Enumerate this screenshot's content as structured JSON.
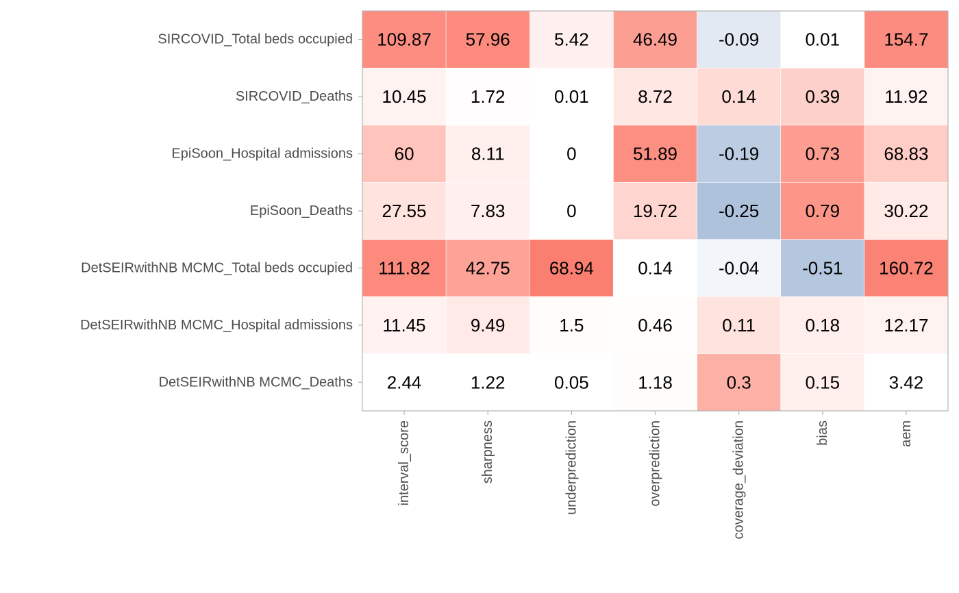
{
  "chart_data": {
    "type": "heatmap",
    "title": "",
    "xlabel": "",
    "ylabel": "",
    "legend": "none",
    "grid": false,
    "columns": [
      "interval_score",
      "sharpness",
      "underprediction",
      "overprediction",
      "coverage_deviation",
      "bias",
      "aem"
    ],
    "rows": [
      "SIRCOVID_Total beds occupied",
      "SIRCOVID_Deaths",
      "EpiSoon_Hospital admissions",
      "EpiSoon_Deaths",
      "DetSEIRwithNB MCMC_Total beds occupied",
      "DetSEIRwithNB MCMC_Hospital admissions",
      "DetSEIRwithNB MCMC_Deaths"
    ],
    "cells": [
      [
        {
          "label": "109.87",
          "color": "#fc8d80"
        },
        {
          "label": "57.96",
          "color": "#fc8a7d"
        },
        {
          "label": "5.42",
          "color": "#fff0ef"
        },
        {
          "label": "46.49",
          "color": "#fd9e93"
        },
        {
          "label": "-0.09",
          "color": "#e3e9f3"
        },
        {
          "label": "0.01",
          "color": "#ffffff"
        },
        {
          "label": "154.7",
          "color": "#fc8c7f"
        }
      ],
      [
        {
          "label": "10.45",
          "color": "#fff3f2"
        },
        {
          "label": "1.72",
          "color": "#fffdfd"
        },
        {
          "label": "0.01",
          "color": "#ffffff"
        },
        {
          "label": "8.72",
          "color": "#ffe7e4"
        },
        {
          "label": "0.14",
          "color": "#ffdbd6"
        },
        {
          "label": "0.39",
          "color": "#fed0ca"
        },
        {
          "label": "11.92",
          "color": "#fff3f2"
        }
      ],
      [
        {
          "label": "60",
          "color": "#ffc4bc"
        },
        {
          "label": "8.11",
          "color": "#fff0ee"
        },
        {
          "label": "0",
          "color": "#ffffff"
        },
        {
          "label": "51.89",
          "color": "#fc8f82"
        },
        {
          "label": "-0.19",
          "color": "#bccde3"
        },
        {
          "label": "0.73",
          "color": "#fd9d92"
        },
        {
          "label": "68.83",
          "color": "#ffcdc6"
        }
      ],
      [
        {
          "label": "27.55",
          "color": "#ffe3df"
        },
        {
          "label": "7.83",
          "color": "#fff0ef"
        },
        {
          "label": "0",
          "color": "#ffffff"
        },
        {
          "label": "19.72",
          "color": "#ffd5cf"
        },
        {
          "label": "-0.25",
          "color": "#aec2dc"
        },
        {
          "label": "0.79",
          "color": "#fd9589"
        },
        {
          "label": "30.22",
          "color": "#ffeae7"
        }
      ],
      [
        {
          "label": "111.82",
          "color": "#fc8b7e"
        },
        {
          "label": "42.75",
          "color": "#fda297"
        },
        {
          "label": "68.94",
          "color": "#fb7f71"
        },
        {
          "label": "0.14",
          "color": "#ffffff"
        },
        {
          "label": "-0.04",
          "color": "#f2f5fa"
        },
        {
          "label": "-0.51",
          "color": "#b5c7df"
        },
        {
          "label": "160.72",
          "color": "#fb8375"
        }
      ],
      [
        {
          "label": "11.45",
          "color": "#fff2f1"
        },
        {
          "label": "9.49",
          "color": "#ffeae8"
        },
        {
          "label": "1.5",
          "color": "#fffcfb"
        },
        {
          "label": "0.46",
          "color": "#fffefd"
        },
        {
          "label": "0.11",
          "color": "#ffe3df"
        },
        {
          "label": "0.18",
          "color": "#ffeeec"
        },
        {
          "label": "12.17",
          "color": "#fff3f2"
        }
      ],
      [
        {
          "label": "2.44",
          "color": "#ffffff"
        },
        {
          "label": "1.22",
          "color": "#ffffff"
        },
        {
          "label": "0.05",
          "color": "#ffffff"
        },
        {
          "label": "1.18",
          "color": "#fffdfb"
        },
        {
          "label": "0.3",
          "color": "#fdb0a6"
        },
        {
          "label": "0.15",
          "color": "#fff0ee"
        },
        {
          "label": "3.42",
          "color": "#ffffff"
        }
      ]
    ]
  }
}
